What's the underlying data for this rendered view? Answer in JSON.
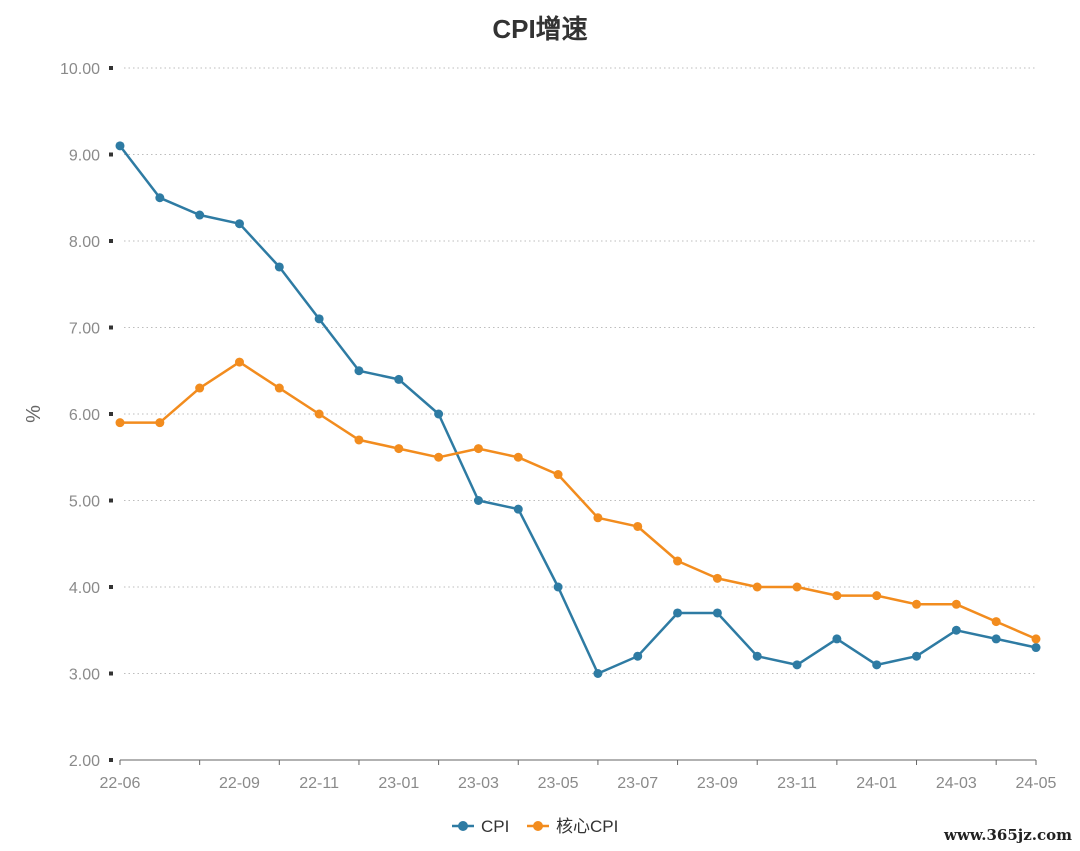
{
  "chart_data": {
    "type": "line",
    "title": "CPI增速",
    "xlabel": "",
    "ylabel": "%",
    "ylim": [
      2.0,
      10.0
    ],
    "yticks": [
      "2.00",
      "3.00",
      "4.00",
      "5.00",
      "6.00",
      "7.00",
      "8.00",
      "9.00",
      "10.00"
    ],
    "x": [
      "22-06",
      "22-07",
      "22-08",
      "22-09",
      "22-10",
      "22-11",
      "22-12",
      "23-01",
      "23-02",
      "23-03",
      "23-04",
      "23-05",
      "23-06",
      "23-07",
      "23-08",
      "23-09",
      "23-10",
      "23-11",
      "23-12",
      "24-01",
      "24-02",
      "24-03",
      "24-04",
      "24-05"
    ],
    "xtick_labels": [
      "22-06",
      "22-09",
      "22-11",
      "23-01",
      "23-03",
      "23-05",
      "23-07",
      "23-09",
      "23-11",
      "24-01",
      "24-03",
      "24-05"
    ],
    "grid": true,
    "legend_position": "bottom-center",
    "series": [
      {
        "name": "CPI",
        "color": "#2e7ba3",
        "values": [
          9.1,
          8.5,
          8.3,
          8.2,
          7.7,
          7.1,
          6.5,
          6.4,
          6.0,
          5.0,
          4.9,
          4.0,
          3.0,
          3.2,
          3.7,
          3.7,
          3.2,
          3.1,
          3.4,
          3.1,
          3.2,
          3.5,
          3.4,
          3.3
        ]
      },
      {
        "name": "核心CPI",
        "color": "#f28c1e",
        "values": [
          5.9,
          5.9,
          6.3,
          6.6,
          6.3,
          6.0,
          5.7,
          5.6,
          5.5,
          5.6,
          5.5,
          5.3,
          4.8,
          4.7,
          4.3,
          4.1,
          4.0,
          4.0,
          3.9,
          3.9,
          3.8,
          3.8,
          3.6,
          3.4
        ]
      }
    ]
  },
  "watermark": "www.365jz.com"
}
